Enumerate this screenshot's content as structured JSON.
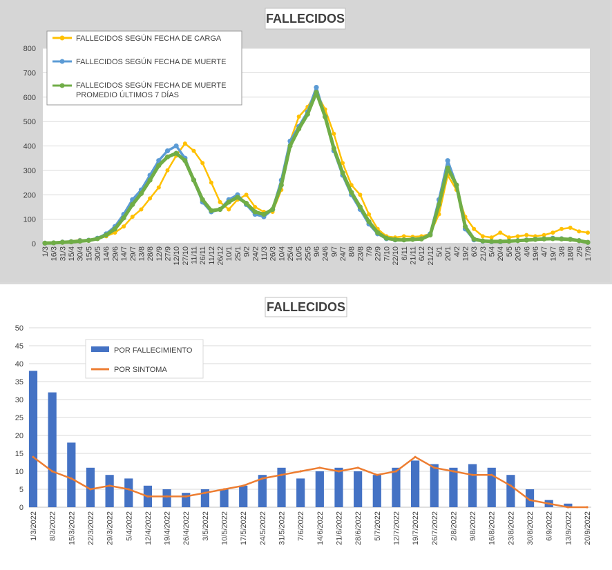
{
  "chart_data": [
    {
      "type": "line",
      "title": "FALLECIDOS",
      "xlabel": "",
      "ylabel": "",
      "ylim": [
        0,
        800
      ],
      "yticks": [
        0,
        100,
        200,
        300,
        400,
        500,
        600,
        700,
        800
      ],
      "grid": true,
      "legend_position": "top-left",
      "categories": [
        "1/3",
        "16/3",
        "31/3",
        "15/4",
        "30/4",
        "15/5",
        "30/5",
        "14/6",
        "29/6",
        "14/7",
        "29/7",
        "13/8",
        "28/8",
        "12/9",
        "27/9",
        "12/10",
        "27/10",
        "11/11",
        "26/11",
        "11/12",
        "26/12",
        "10/1",
        "25/1",
        "9/2",
        "24/2",
        "11/3",
        "26/3",
        "10/4",
        "25/4",
        "10/5",
        "25/5",
        "9/6",
        "24/6",
        "9/7",
        "24/7",
        "8/8",
        "23/8",
        "7/9",
        "22/9",
        "7/10",
        "22/10",
        "6/11",
        "21/11",
        "6/12",
        "21/12",
        "5/1",
        "20/1",
        "4/2",
        "19/2",
        "6/3",
        "21/3",
        "5/4",
        "20/4",
        "5/5",
        "20/5",
        "4/6",
        "19/6",
        "4/7",
        "19/7",
        "3/8",
        "18/8",
        "2/9",
        "17/9"
      ],
      "series": [
        {
          "name": "FALLECIDOS SEGÚN FECHA DE CARGA",
          "color": "#ffc000",
          "values": [
            2,
            4,
            8,
            10,
            15,
            12,
            20,
            30,
            45,
            70,
            110,
            140,
            185,
            230,
            300,
            360,
            410,
            380,
            330,
            250,
            170,
            140,
            180,
            200,
            150,
            130,
            130,
            220,
            420,
            520,
            560,
            620,
            550,
            450,
            330,
            240,
            200,
            120,
            60,
            30,
            25,
            30,
            28,
            30,
            40,
            120,
            280,
            220,
            110,
            60,
            30,
            25,
            45,
            25,
            30,
            35,
            30,
            35,
            45,
            60,
            65,
            50,
            45
          ]
        },
        {
          "name": "FALLECIDOS SEGÚN FECHA DE MUERTE",
          "color": "#5b9bd5",
          "values": [
            2,
            3,
            6,
            8,
            12,
            14,
            22,
            40,
            70,
            120,
            180,
            220,
            280,
            340,
            380,
            400,
            350,
            260,
            170,
            130,
            140,
            180,
            200,
            160,
            120,
            110,
            140,
            260,
            420,
            480,
            540,
            640,
            520,
            380,
            280,
            200,
            140,
            80,
            40,
            20,
            15,
            15,
            18,
            20,
            40,
            180,
            340,
            240,
            60,
            15,
            10,
            8,
            8,
            10,
            12,
            15,
            18,
            20,
            22,
            20,
            18,
            12,
            5
          ]
        },
        {
          "name": "FALLECIDOS SEGÚN FECHA DE MUERTE PROMEDIO ÚLTIMOS 7 DÍAS",
          "color": "#70ad47",
          "values": [
            2,
            3,
            5,
            7,
            10,
            13,
            20,
            35,
            60,
            105,
            160,
            205,
            260,
            320,
            355,
            370,
            340,
            260,
            180,
            135,
            140,
            170,
            190,
            165,
            130,
            120,
            140,
            240,
            400,
            470,
            530,
            620,
            520,
            390,
            290,
            210,
            150,
            90,
            45,
            22,
            16,
            15,
            17,
            19,
            35,
            160,
            310,
            240,
            70,
            18,
            11,
            9,
            9,
            10,
            12,
            14,
            17,
            19,
            20,
            19,
            17,
            12,
            5
          ]
        }
      ]
    },
    {
      "type": "bar",
      "title": "FALLECIDOS",
      "xlabel": "",
      "ylabel": "",
      "ylim": [
        0,
        50
      ],
      "yticks": [
        0,
        5,
        10,
        15,
        20,
        25,
        30,
        35,
        40,
        45,
        50
      ],
      "grid": true,
      "legend_position": "top-left",
      "categories": [
        "1/3/2022",
        "8/3/2022",
        "15/3/2022",
        "22/3/2022",
        "29/3/2022",
        "5/4/2022",
        "12/4/2022",
        "19/4/2022",
        "26/4/2022",
        "3/5/2022",
        "10/5/2022",
        "17/5/2022",
        "24/5/2022",
        "31/5/2022",
        "7/6/2022",
        "14/6/2022",
        "21/6/2022",
        "28/6/2022",
        "5/7/2022",
        "12/7/2022",
        "19/7/2022",
        "26/7/2022",
        "2/8/2022",
        "9/8/2022",
        "16/8/2022",
        "23/8/2022",
        "30/8/2022",
        "6/9/2022",
        "13/9/2022",
        "20/9/2022"
      ],
      "series": [
        {
          "name": "POR FALLECIMIENTO",
          "type": "bar",
          "color": "#4472c4",
          "values": [
            38,
            32,
            18,
            11,
            9,
            8,
            6,
            5,
            4,
            5,
            5,
            6,
            9,
            11,
            8,
            10,
            11,
            10,
            9,
            11,
            13,
            12,
            11,
            12,
            11,
            9,
            5,
            2,
            1,
            0
          ]
        },
        {
          "name": "POR SINTOMA",
          "type": "line",
          "color": "#ed7d31",
          "values": [
            14,
            10,
            8,
            5,
            6,
            5,
            3,
            3,
            3,
            4,
            5,
            6,
            8,
            9,
            10,
            11,
            10,
            11,
            9,
            10,
            14,
            11,
            10,
            9,
            9,
            6,
            2,
            1,
            0,
            0
          ]
        }
      ]
    }
  ]
}
